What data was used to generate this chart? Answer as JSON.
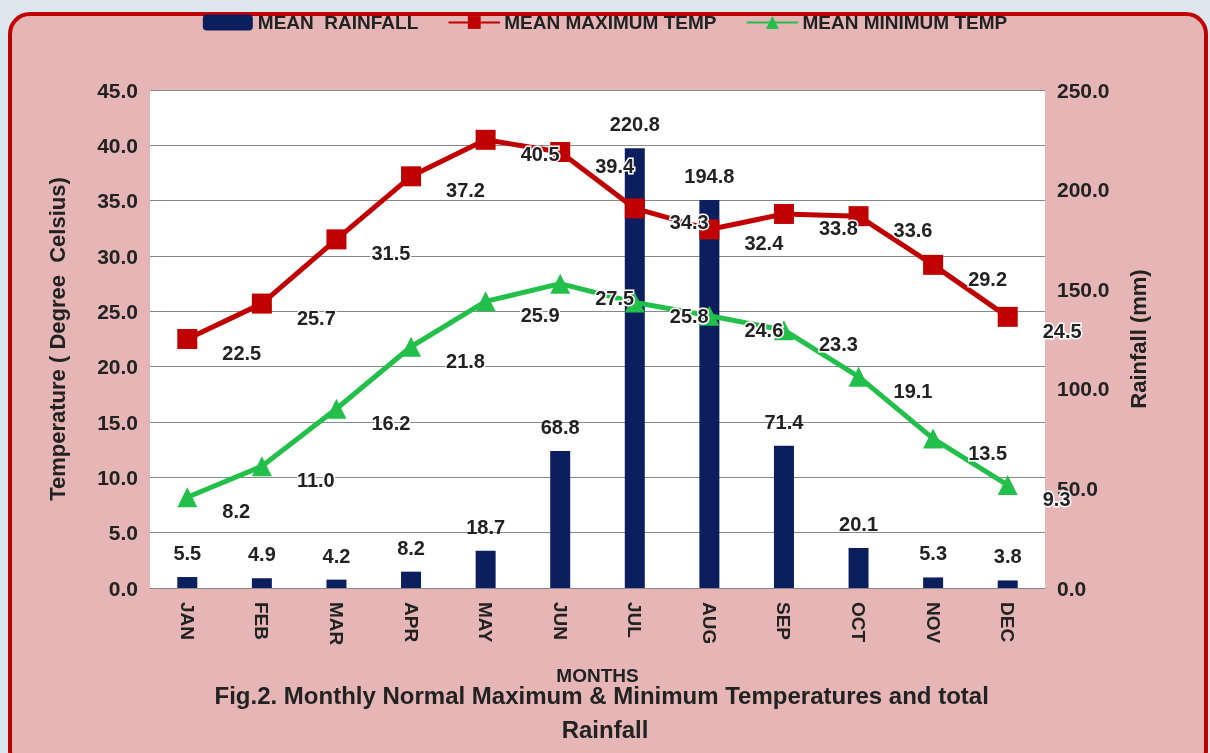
{
  "chart_data": {
    "type": "bar",
    "title": "Fig.2. Monthly Normal Maximum & Minimum Temperatures and total Rainfall",
    "xlabel": "MONTHS",
    "ylabel": "Temperature ( Degree  Celsius)",
    "y2label": "Rainfall (mm)",
    "categories": [
      "JAN",
      "FEB",
      "MAR",
      "APR",
      "MAY",
      "JUN",
      "JUL",
      "AUG",
      "SEP",
      "OCT",
      "NOV",
      "DEC"
    ],
    "series": [
      {
        "name": "MEAN  RAINFALL",
        "axis": "y2",
        "color": "#0b1f5e",
        "values": [
          5.5,
          4.9,
          4.2,
          8.2,
          18.7,
          68.8,
          220.8,
          194.8,
          71.4,
          20.1,
          5.3,
          3.8
        ],
        "value_labels": [
          "5.5",
          "4.9",
          "4.2",
          "8.2",
          "18.7",
          "68.8",
          "220.8",
          "194.8",
          "71.4",
          "20.1",
          "5.3",
          "3.8"
        ]
      },
      {
        "name": "MEAN MAXIMUM TEMP",
        "type": "line",
        "marker": "square",
        "color": "#c00000",
        "values": [
          22.5,
          25.7,
          31.5,
          37.2,
          40.5,
          39.4,
          34.3,
          32.4,
          33.8,
          33.6,
          29.2,
          24.5
        ],
        "value_labels": [
          "22.5",
          "25.7",
          "31.5",
          "37.2",
          "40.5",
          "39.4",
          "34.3",
          "32.4",
          "33.8",
          "33.6",
          "29.2",
          "24.5"
        ]
      },
      {
        "name": "MEAN MINIMUM TEMP",
        "type": "line",
        "marker": "triangle",
        "color": "#22c04a",
        "values": [
          8.2,
          11.0,
          16.2,
          21.8,
          25.9,
          27.5,
          25.8,
          24.6,
          23.3,
          19.1,
          13.5,
          9.3
        ],
        "value_labels": [
          "8.2",
          "11.0",
          "16.2",
          "21.8",
          "25.9",
          "27.5",
          "25.8",
          "24.6",
          "23.3",
          "19.1",
          "13.5",
          "9.3"
        ]
      }
    ],
    "ylim": [
      0,
      45
    ],
    "yticks": [
      {
        "value": 0,
        "label": "0.0"
      },
      {
        "value": 5,
        "label": "5.0"
      },
      {
        "value": 10,
        "label": "10.0"
      },
      {
        "value": 15,
        "label": "15.0"
      },
      {
        "value": 20,
        "label": "20.0"
      },
      {
        "value": 25,
        "label": "25.0"
      },
      {
        "value": 30,
        "label": "30.0"
      },
      {
        "value": 35,
        "label": "35.0"
      },
      {
        "value": 40,
        "label": "40.0"
      },
      {
        "value": 45,
        "label": "45.0"
      }
    ],
    "y2lim": [
      0,
      250
    ],
    "y2ticks": [
      {
        "value": 0,
        "label": "0.0"
      },
      {
        "value": 50,
        "label": "50.0"
      },
      {
        "value": 100,
        "label": "100.0"
      },
      {
        "value": 150,
        "label": "150.0"
      },
      {
        "value": 200,
        "label": "200.0"
      },
      {
        "value": 250,
        "label": "250.0"
      }
    ],
    "grid": "y",
    "legend": "top"
  }
}
